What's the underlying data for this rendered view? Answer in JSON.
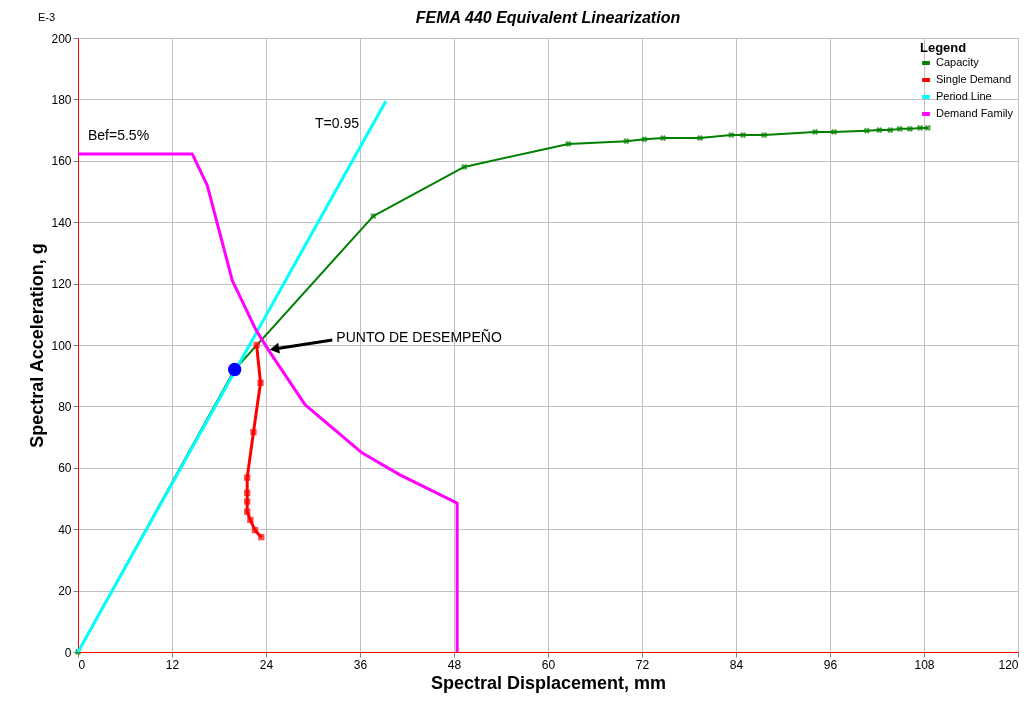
{
  "chart_data": {
    "type": "line",
    "title": "FEMA 440 Equivalent Linearization",
    "xlabel": "Spectral Displacement, mm",
    "ylabel": "Spectral Acceleration, g",
    "legend_title": "Legend",
    "legend": "top right",
    "grid": true,
    "xlim": [
      0,
      120
    ],
    "xticks": [
      0,
      12,
      24,
      36,
      48,
      60,
      72,
      84,
      96,
      108,
      120
    ],
    "ylim": [
      0,
      200
    ],
    "yticks": [
      0,
      20,
      40,
      60,
      80,
      100,
      120,
      140,
      160,
      180,
      200
    ],
    "series": [
      {
        "name": "Capacity",
        "color": "#008000",
        "marker": "cross",
        "x": [
          0,
          20,
          37.7,
          49.3,
          62.6,
          70,
          72.3,
          74.7,
          79.4,
          83.4,
          84.9,
          87.6,
          94.1,
          96.5,
          100.7,
          102.3,
          103.7,
          104.9,
          106.2,
          107.5,
          108.5
        ],
        "values": [
          0,
          92,
          142,
          158,
          165.5,
          166.4,
          167,
          167.4,
          167.4,
          168.4,
          168.4,
          168.4,
          169.4,
          169.4,
          169.8,
          170,
          170,
          170.4,
          170.4,
          170.7,
          170.7
        ]
      },
      {
        "name": "Single Demand",
        "color": "#ff0000",
        "marker": "square",
        "x": [
          22.8,
          23.3,
          22.4,
          21.6,
          21.6,
          21.6,
          21.6,
          22,
          22.6,
          23.4
        ],
        "values": [
          100,
          87.7,
          71.6,
          56.8,
          51.8,
          49,
          45.7,
          43,
          39.7,
          37.4
        ]
      },
      {
        "name": "Period Line",
        "color": "#00ffff",
        "marker": "none",
        "x": [
          0,
          39.3
        ],
        "values": [
          0,
          179.5
        ]
      },
      {
        "name": "Demand Family",
        "color": "#ff00ff",
        "marker": "none",
        "x": [
          0,
          14.6,
          16.5,
          19.7,
          22.7,
          24.3,
          29,
          36.3,
          41.1,
          48.4,
          48.4
        ],
        "values": [
          162.2,
          162.2,
          152,
          121,
          105,
          98.4,
          80.5,
          64.8,
          57.7,
          48.5,
          0
        ]
      },
      {
        "type": "scatter",
        "color": "#0000ff",
        "marker": "circle",
        "x": [
          20
        ],
        "values": [
          92
        ]
      }
    ],
    "annotations": [
      "E-3",
      "Bef=5.5%",
      "T=0.95",
      {
        "text": "PUNTO DE DESEMPEÑO",
        "x": 24.3,
        "y": 98.4
      }
    ]
  }
}
